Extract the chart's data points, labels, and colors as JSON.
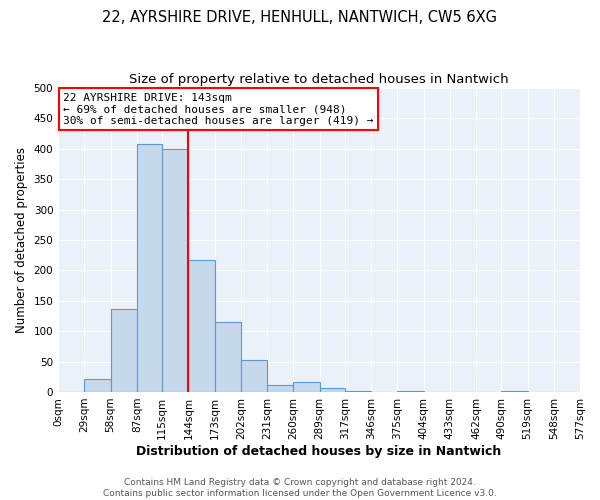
{
  "title": "22, AYRSHIRE DRIVE, HENHULL, NANTWICH, CW5 6XG",
  "subtitle": "Size of property relative to detached houses in Nantwich",
  "xlabel": "Distribution of detached houses by size in Nantwich",
  "ylabel": "Number of detached properties",
  "bin_edges": [
    0,
    29,
    58,
    87,
    115,
    144,
    173,
    202,
    231,
    260,
    289,
    317,
    346,
    375,
    404,
    433,
    462,
    490,
    519,
    548,
    577
  ],
  "bin_heights": [
    0,
    22,
    137,
    408,
    400,
    217,
    115,
    52,
    12,
    16,
    7,
    1,
    0,
    2,
    0,
    0,
    0,
    1,
    0,
    0
  ],
  "bar_color": "#c5d8ec",
  "bar_edge_color": "#5b9bd5",
  "property_line_x": 144,
  "property_line_color": "red",
  "annotation_text_line1": "22 AYRSHIRE DRIVE: 143sqm",
  "annotation_text_line2": "← 69% of detached houses are smaller (948)",
  "annotation_text_line3": "30% of semi-detached houses are larger (419) →",
  "annotation_box_color": "white",
  "annotation_box_edgecolor": "red",
  "ylim": [
    0,
    500
  ],
  "yticks": [
    0,
    50,
    100,
    150,
    200,
    250,
    300,
    350,
    400,
    450,
    500
  ],
  "tick_labels": [
    "0sqm",
    "29sqm",
    "58sqm",
    "87sqm",
    "115sqm",
    "144sqm",
    "173sqm",
    "202sqm",
    "231sqm",
    "260sqm",
    "289sqm",
    "317sqm",
    "346sqm",
    "375sqm",
    "404sqm",
    "433sqm",
    "462sqm",
    "490sqm",
    "519sqm",
    "548sqm",
    "577sqm"
  ],
  "footer_line1": "Contains HM Land Registry data © Crown copyright and database right 2024.",
  "footer_line2": "Contains public sector information licensed under the Open Government Licence v3.0.",
  "background_color": "#eaf1f8",
  "grid_color": "white",
  "title_fontsize": 10.5,
  "subtitle_fontsize": 9.5,
  "xlabel_fontsize": 9,
  "ylabel_fontsize": 8.5,
  "tick_fontsize": 7.5,
  "annotation_fontsize": 8,
  "footer_fontsize": 6.5
}
